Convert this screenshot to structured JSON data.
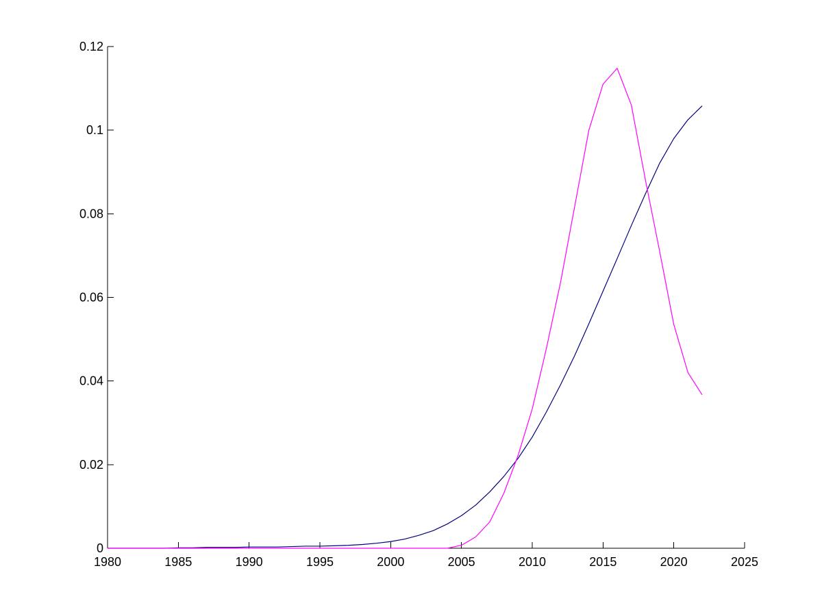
{
  "chart_data": {
    "type": "line",
    "title": "",
    "xlabel": "",
    "ylabel": "",
    "xlim": [
      1980,
      2025
    ],
    "ylim": [
      0,
      0.12
    ],
    "grid": false,
    "legend": "none",
    "xticks": [
      1980,
      1985,
      1990,
      1995,
      2000,
      2005,
      2010,
      2015,
      2020,
      2025
    ],
    "xtick_labels": [
      "1980",
      "1985",
      "1990",
      "1995",
      "2000",
      "2005",
      "2010",
      "2015",
      "2020",
      "2025"
    ],
    "yticks": [
      0,
      0.02,
      0.04,
      0.06,
      0.08,
      0.1,
      0.12
    ],
    "ytick_labels": [
      "0",
      "0.02",
      "0.04",
      "0.06",
      "0.08",
      "0.1",
      "0.12"
    ],
    "x": [
      1980,
      1981,
      1982,
      1983,
      1984,
      1985,
      1986,
      1987,
      1988,
      1989,
      1990,
      1991,
      1992,
      1993,
      1994,
      1995,
      1996,
      1997,
      1998,
      1999,
      2000,
      2001,
      2002,
      2003,
      2004,
      2005,
      2006,
      2007,
      2008,
      2009,
      2010,
      2011,
      2012,
      2013,
      2014,
      2015,
      2016,
      2017,
      2018,
      2019,
      2020,
      2021,
      2022
    ],
    "series": [
      {
        "color": "#000080",
        "values": [
          0,
          0,
          0,
          0,
          0,
          0.0001,
          0.0001,
          0.0002,
          0.0002,
          0.0002,
          0.0003,
          0.0003,
          0.0003,
          0.0004,
          0.0005,
          0.0005,
          0.0006,
          0.0007,
          0.0009,
          0.0012,
          0.0016,
          0.0022,
          0.0031,
          0.0042,
          0.0058,
          0.0078,
          0.0103,
          0.0135,
          0.0172,
          0.0215,
          0.0266,
          0.0326,
          0.0391,
          0.0461,
          0.0537,
          0.0615,
          0.0693,
          0.0772,
          0.0848,
          0.0921,
          0.098,
          0.1025,
          0.1058
        ]
      },
      {
        "color": "#ff00ff",
        "values": [
          0,
          0,
          0,
          0,
          0,
          0,
          0,
          0,
          0,
          0,
          0,
          0,
          0,
          0,
          0,
          0,
          0,
          0,
          0,
          0,
          0,
          0,
          0,
          0,
          0,
          0.0007,
          0.0027,
          0.0063,
          0.0132,
          0.0222,
          0.0333,
          0.0478,
          0.0636,
          0.0818,
          0.1,
          0.111,
          0.1148,
          0.106,
          0.088,
          0.071,
          0.0535,
          0.042,
          0.0367
        ]
      }
    ]
  }
}
